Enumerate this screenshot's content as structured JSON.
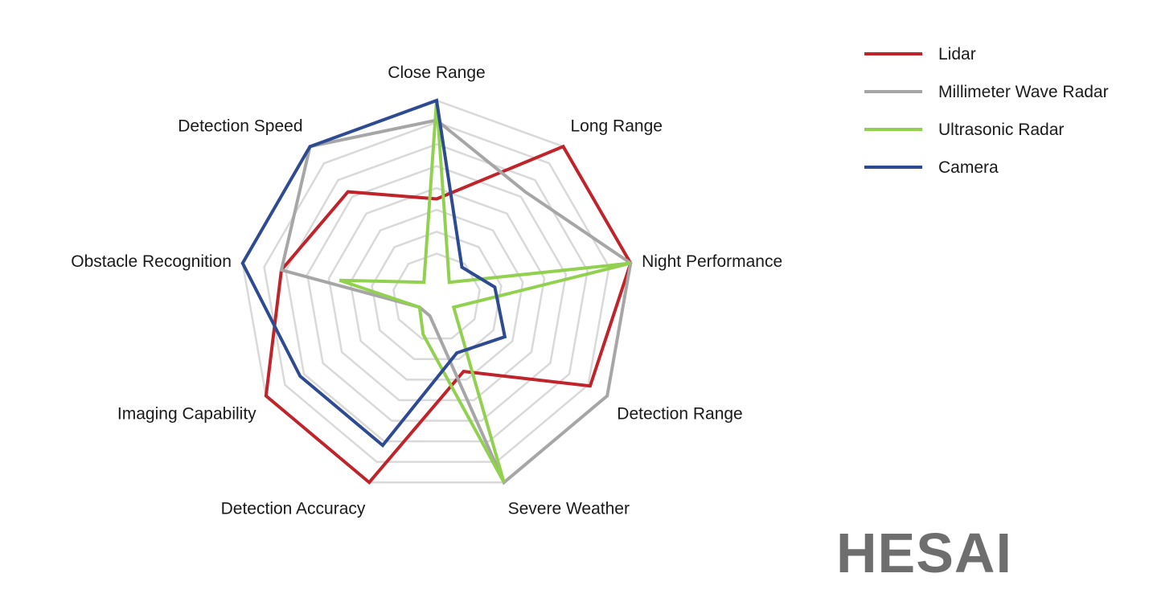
{
  "chart_data": {
    "type": "radar",
    "axes": [
      "Close Range",
      "Long Range",
      "Night Performance",
      "Detection Range",
      "Severe Weather",
      "Detection Accuracy",
      "Imaging Capability",
      "Obstacle Recognition",
      "Detection Speed"
    ],
    "rings": 8,
    "grid": true,
    "legend_position": "top-right",
    "series": [
      {
        "name": "Lidar",
        "color": "#c0242a",
        "values": [
          5,
          10,
          10,
          9,
          4,
          10,
          10,
          8,
          7
        ]
      },
      {
        "name": "Millimeter Wave Radar",
        "color": "#a6a6a6",
        "values": [
          9,
          7,
          10,
          10,
          10,
          1,
          1,
          8,
          10
        ]
      },
      {
        "name": "Ultrasonic Radar",
        "color": "#92d050",
        "values": [
          10,
          1,
          10,
          1,
          10,
          2,
          1,
          5,
          1
        ]
      },
      {
        "name": "Camera",
        "color": "#2e4a93",
        "values": [
          10,
          2,
          3,
          4,
          3,
          8,
          8,
          10,
          10
        ]
      }
    ],
    "max": 10
  },
  "logo": {
    "text": "HESAI"
  }
}
